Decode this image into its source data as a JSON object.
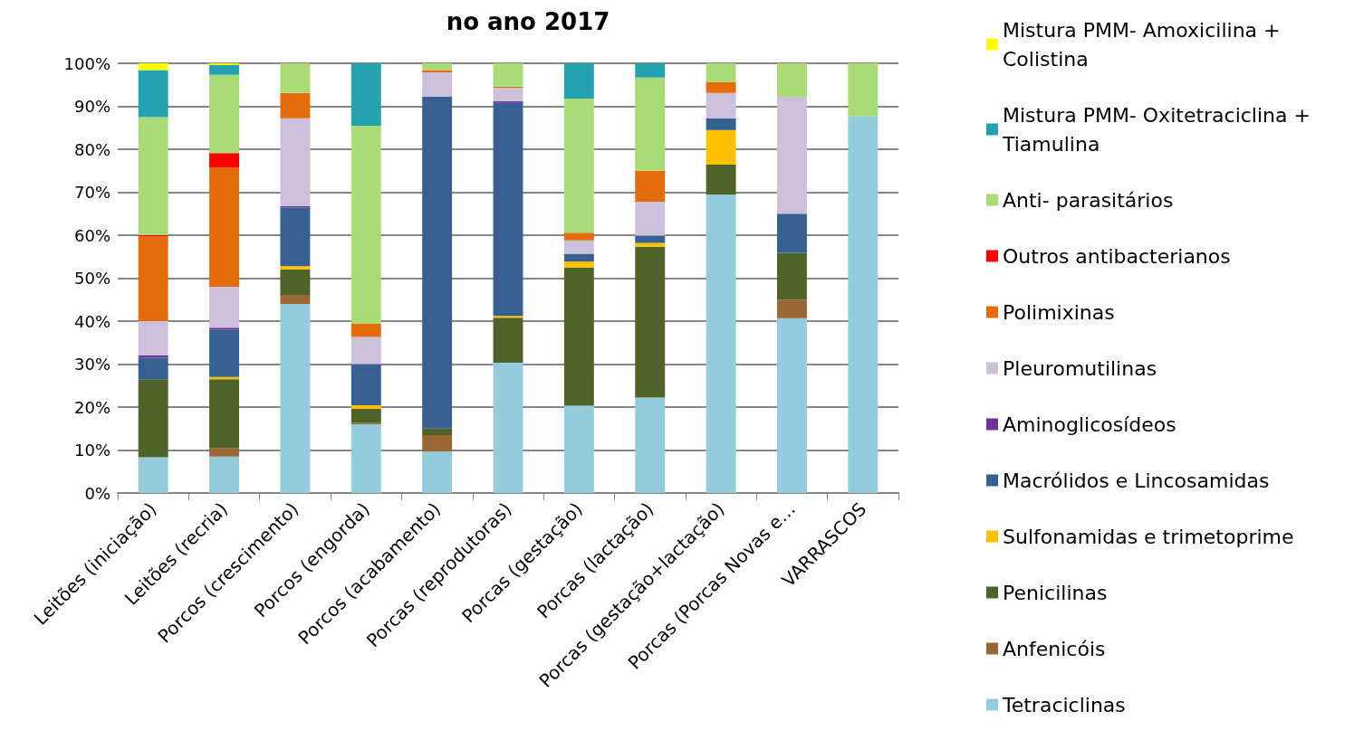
{
  "chart_data": {
    "type": "bar",
    "stacked": true,
    "title": "no ano 2017",
    "categories": [
      "Leitões (iniciação)",
      "Leitões (recria)",
      "Porcos (crescimento)",
      "Porcos (engorda)",
      "Porcos (acabamento)",
      "Porcas (reprodutoras)",
      "Porcas (gestação)",
      "Porcas (lactação)",
      "Porcas (gestação+lactação)",
      "Porcas (Porcas Novas e…",
      "VARRASCOS"
    ],
    "series": [
      {
        "name": "Tetraciclinas",
        "color": "#93cddd",
        "values": [
          8.3,
          8.5,
          44,
          16,
          9.7,
          30.3,
          20.3,
          22.2,
          69.5,
          40.7,
          87.7
        ]
      },
      {
        "name": "Anfenicóis",
        "color": "#9a6633",
        "values": [
          0,
          2,
          2.1,
          0.3,
          3.8,
          0,
          0,
          0,
          0,
          4.3,
          0
        ]
      },
      {
        "name": "Penicilinas",
        "color": "#4f6228",
        "values": [
          18.2,
          16,
          5.9,
          3.3,
          1.5,
          10.5,
          32.2,
          35.1,
          6.9,
          10.9,
          0
        ]
      },
      {
        "name": "Sulfonamidas e trimetoprime",
        "color": "#ffc000",
        "values": [
          0,
          0.5,
          0.8,
          0.8,
          0,
          0.4,
          1.4,
          0.9,
          8.1,
          0,
          0
        ]
      },
      {
        "name": "Macrólidos e Lincosamidas",
        "color": "#366092",
        "values": [
          5,
          11,
          13.6,
          9.6,
          77.2,
          49.6,
          1.8,
          1.7,
          2.7,
          9.1,
          0
        ]
      },
      {
        "name": "Aminoglicosídeos",
        "color": "#7030a0",
        "values": [
          0.5,
          0.5,
          0.4,
          0,
          0,
          0.4,
          0,
          0,
          0,
          0,
          0
        ]
      },
      {
        "name": "Pleuromutilinas",
        "color": "#ccc1da",
        "values": [
          8,
          9.5,
          20.4,
          6.3,
          5.7,
          3.1,
          3.1,
          7.9,
          5.9,
          27.2,
          0
        ]
      },
      {
        "name": "Polimixinas",
        "color": "#e46c0a",
        "values": [
          19.7,
          27.8,
          5.9,
          3.2,
          0.5,
          0.3,
          1.8,
          7.2,
          2.5,
          0,
          0
        ]
      },
      {
        "name": "Outros antibacterianos",
        "color": "#ff0000",
        "values": [
          0.3,
          3.3,
          0,
          0,
          0,
          0,
          0,
          0,
          0,
          0,
          0
        ]
      },
      {
        "name": "Anti- parasitários",
        "color": "#abdb77",
        "values": [
          27.5,
          18.2,
          6.9,
          46,
          1.6,
          5.4,
          31.2,
          21.7,
          4.4,
          7.8,
          12.3
        ]
      },
      {
        "name": "Mistura PMM- Oxitetraciclina + Tiamulina",
        "color": "#24a2b0",
        "values": [
          10.9,
          2.3,
          0,
          14.5,
          0,
          0,
          8.2,
          3.3,
          0,
          0,
          0
        ]
      },
      {
        "name": "Mistura PMM- Amoxicilina + Colistina",
        "color": "#ffff00",
        "values": [
          1.6,
          0.4,
          0,
          0,
          0,
          0,
          0,
          0,
          0,
          0,
          0
        ]
      }
    ],
    "ylim": [
      0,
      100
    ],
    "yticks": [
      {
        "value": 0,
        "label": "0%"
      },
      {
        "value": 10,
        "label": "10%"
      },
      {
        "value": 20,
        "label": "20%"
      },
      {
        "value": 30,
        "label": "30%"
      },
      {
        "value": 40,
        "label": "40%"
      },
      {
        "value": 50,
        "label": "50%"
      },
      {
        "value": 60,
        "label": "60%"
      },
      {
        "value": 70,
        "label": "70%"
      },
      {
        "value": 80,
        "label": "80%"
      },
      {
        "value": 90,
        "label": "90%"
      },
      {
        "value": 100,
        "label": "100%"
      }
    ],
    "grid": "y",
    "legend": "right"
  }
}
